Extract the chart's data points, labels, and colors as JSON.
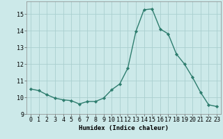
{
  "x": [
    0,
    1,
    2,
    3,
    4,
    5,
    6,
    7,
    8,
    9,
    10,
    11,
    12,
    13,
    14,
    15,
    16,
    17,
    18,
    19,
    20,
    21,
    22,
    23
  ],
  "y": [
    10.5,
    10.4,
    10.15,
    9.95,
    9.85,
    9.8,
    9.6,
    9.75,
    9.75,
    9.95,
    10.45,
    10.8,
    11.75,
    13.95,
    15.25,
    15.3,
    14.1,
    13.8,
    12.6,
    12.0,
    11.2,
    10.3,
    9.55,
    9.45
  ],
  "line_color": "#2e7d6e",
  "marker": "D",
  "marker_size": 2.2,
  "bg_color": "#cce9e9",
  "grid_color": "#aacfcf",
  "xlabel": "Humidex (Indice chaleur)",
  "xlim": [
    -0.5,
    23.5
  ],
  "ylim": [
    9.0,
    15.75
  ],
  "yticks": [
    9,
    10,
    11,
    12,
    13,
    14,
    15
  ],
  "xticks": [
    0,
    1,
    2,
    3,
    4,
    5,
    6,
    7,
    8,
    9,
    10,
    11,
    12,
    13,
    14,
    15,
    16,
    17,
    18,
    19,
    20,
    21,
    22,
    23
  ],
  "label_fontsize": 6.5,
  "tick_fontsize": 6.0,
  "line_width": 1.0
}
